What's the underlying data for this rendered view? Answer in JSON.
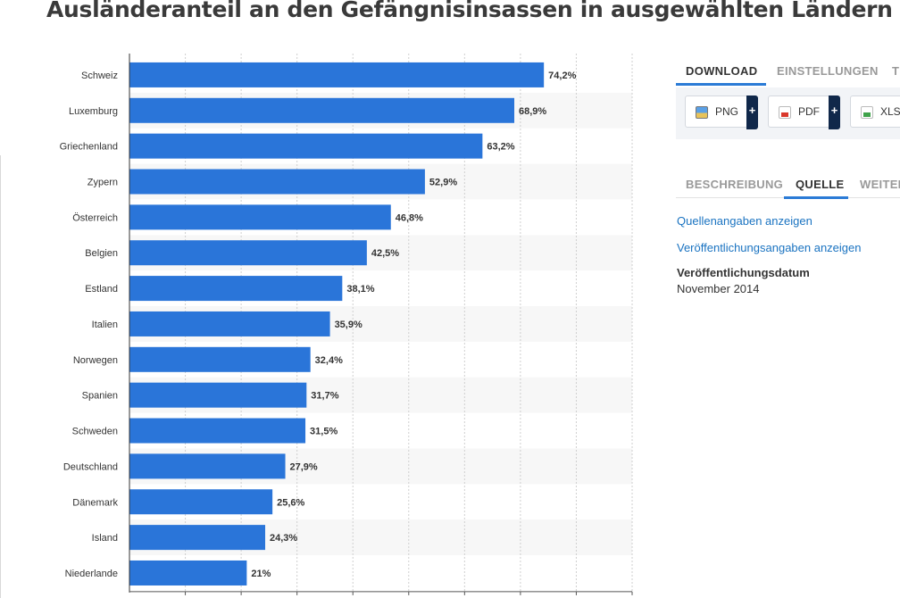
{
  "page": {
    "title": "Ausländeranteil an den Gefängnisinsassen in ausgewählten Ländern"
  },
  "sidebar": {
    "download_tabs": [
      {
        "label": "DOWNLOAD",
        "active": true
      },
      {
        "label": "EINSTELLUNGEN",
        "active": false
      },
      {
        "label": "TEILEN",
        "active": false
      }
    ],
    "downloads": [
      {
        "label": "PNG",
        "icon": "png-file-icon"
      },
      {
        "label": "PDF",
        "icon": "pdf-file-icon"
      },
      {
        "label": "XLS",
        "icon": "xls-file-icon"
      }
    ],
    "plus_label": "+",
    "info_tabs": [
      {
        "label": "BESCHREIBUNG",
        "active": false
      },
      {
        "label": "QUELLE",
        "active": true
      },
      {
        "label": "WEITERE INFORMATIONEN",
        "active": false
      }
    ],
    "source_link": "Quellenangaben anzeigen",
    "publication_link": "Veröffentlichungsangaben anzeigen",
    "publication_date_label": "Veröffentlichungsdatum",
    "publication_date_value": "November 2014"
  },
  "colors": {
    "bar": "#2a75d9",
    "accent": "#2b7bd6",
    "link": "#1a73c1"
  },
  "chart_data": {
    "type": "bar",
    "orientation": "horizontal",
    "title": "Ausländeranteil an den Gefängnisinsassen in ausgewählten Ländern",
    "xlabel": "",
    "ylabel": "",
    "xlim": [
      0,
      90
    ],
    "grid": true,
    "categories": [
      "Schweiz",
      "Luxemburg",
      "Griechenland",
      "Zypern",
      "Österreich",
      "Belgien",
      "Estland",
      "Italien",
      "Norwegen",
      "Spanien",
      "Schweden",
      "Deutschland",
      "Dänemark",
      "Island",
      "Niederlande"
    ],
    "values": [
      74.2,
      68.9,
      63.2,
      52.9,
      46.8,
      42.5,
      38.1,
      35.9,
      32.4,
      31.7,
      31.5,
      27.9,
      25.6,
      24.3,
      21
    ],
    "value_labels": [
      "74,2%",
      "68,9%",
      "63,2%",
      "52,9%",
      "46,8%",
      "42,5%",
      "38,1%",
      "35,9%",
      "32,4%",
      "31,7%",
      "31,5%",
      "27,9%",
      "25,6%",
      "24,3%",
      "21%"
    ]
  }
}
